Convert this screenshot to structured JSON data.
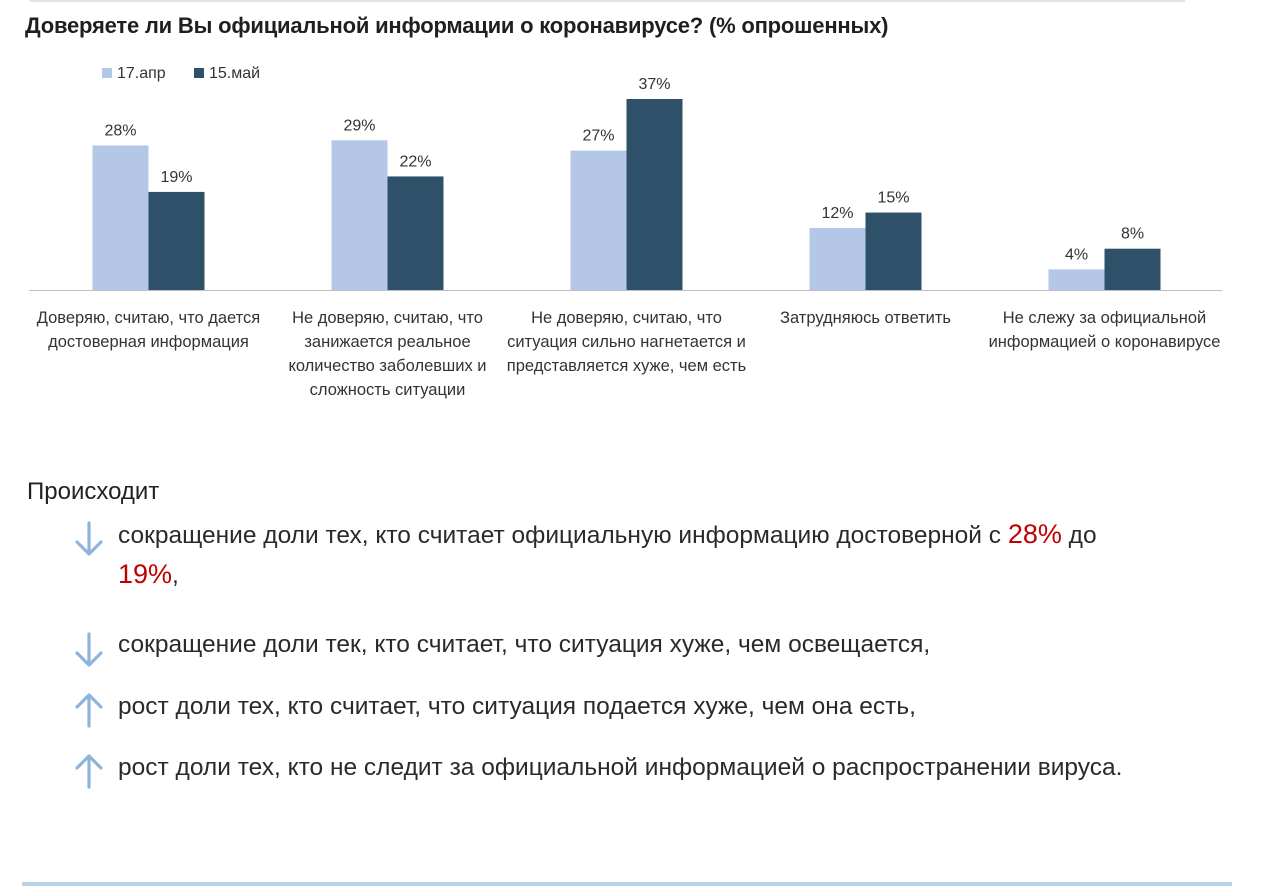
{
  "chart_data": {
    "type": "bar",
    "title": "Доверяете ли Вы официальной информации о коронавирусе? (% опрошенных)",
    "categories": [
      "Доверяю, считаю, что дается достоверная информация",
      "Не доверяю, считаю, что занижается реальное количество заболевших и сложность ситуации",
      "Не доверяю, считаю, что ситуация сильно нагнетается и представляется хуже, чем есть",
      "Затрудняюсь ответить",
      "Не слежу за официальной информацией о коронавирусе"
    ],
    "series": [
      {
        "name": "17.апр",
        "values": [
          28,
          29,
          27,
          12,
          4
        ],
        "labels": [
          "28%",
          "29%",
          "27%",
          "12%",
          "4%"
        ],
        "color": "#b4c7e7"
      },
      {
        "name": "15.май",
        "values": [
          19,
          22,
          37,
          15,
          8
        ],
        "labels": [
          "19%",
          "22%",
          "37%",
          "15%",
          "8%"
        ],
        "color": "#2f5069"
      }
    ],
    "ylim": [
      0,
      37
    ],
    "legend": "top-left",
    "grid": false
  },
  "summary": {
    "heading": "Происходит",
    "items": [
      {
        "arrow": "down-arrow-icon",
        "parts": [
          "сокращение доли тех, кто считает официальную информацию достоверной с ",
          "28%",
          " до ",
          "19%",
          ","
        ]
      },
      {
        "arrow": "down-arrow-icon",
        "text": "сокращение доли тек, кто считает, что ситуация хуже, чем освещается,"
      },
      {
        "arrow": "up-arrow-icon",
        "text": "рост доли тех, кто считает, что ситуация подается хуже, чем она есть,"
      },
      {
        "arrow": "up-arrow-icon",
        "text": "рост доли тех, кто не следит за официальной информацией о распространении вируса."
      }
    ]
  },
  "colors": {
    "accent": "#c00000",
    "arrow": "#8fb4da",
    "rule": "#b9d2ea"
  }
}
